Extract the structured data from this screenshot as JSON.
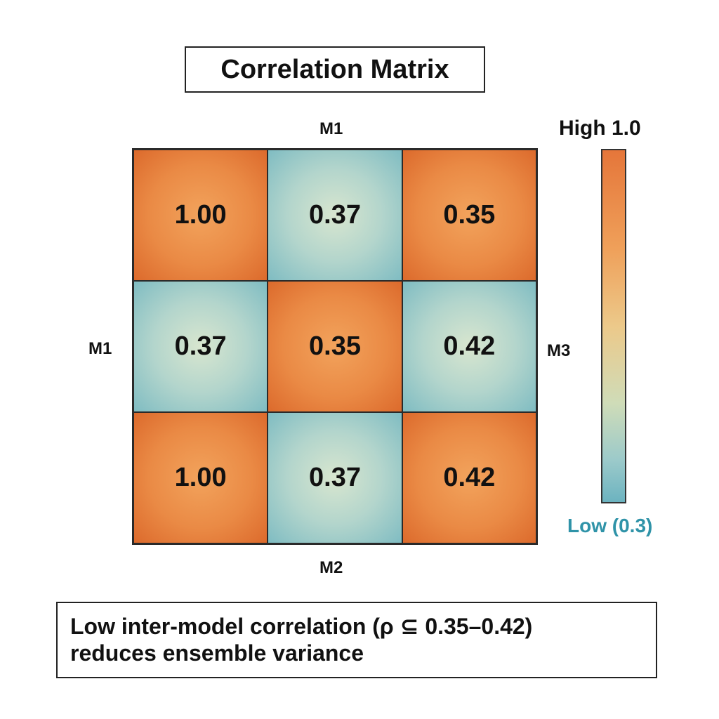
{
  "chart_data": {
    "type": "heatmap",
    "title": "Correlation Matrix",
    "axis_labels": {
      "top": "M1",
      "left": "M1",
      "right": "M3",
      "bottom": "M2"
    },
    "values": [
      [
        1.0,
        0.37,
        0.35
      ],
      [
        0.37,
        0.35,
        0.42
      ],
      [
        1.0,
        0.37,
        0.42
      ]
    ],
    "cell_labels": [
      [
        "1.00",
        "0.37",
        "0.35"
      ],
      [
        "0.37",
        "0.35",
        "0.42"
      ],
      [
        "1.00",
        "0.37",
        "0.42"
      ]
    ],
    "cell_levels": [
      [
        "high",
        "low",
        "high"
      ],
      [
        "low",
        "high",
        "low"
      ],
      [
        "high",
        "low",
        "high"
      ]
    ],
    "colorbar": {
      "high_label": "High 1.0",
      "low_label": "Low (0.3)",
      "range": [
        0.3,
        1.0
      ],
      "high_color": "#e5763a",
      "low_color": "#6cb3c0"
    }
  },
  "caption": {
    "line1": "Low inter-model correlation (ρ ⊆ 0.35–0.42)",
    "line2": "reduces ensemble variance"
  }
}
